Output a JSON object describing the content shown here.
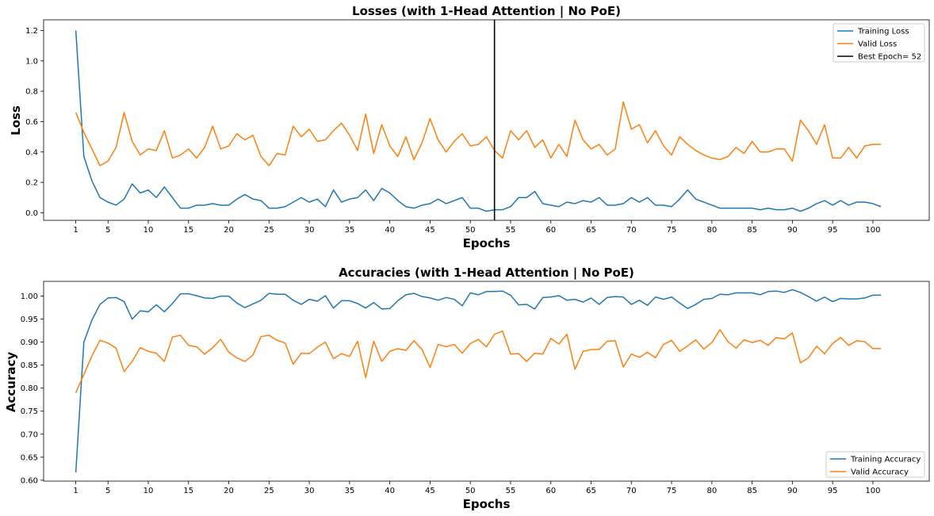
{
  "colors": {
    "training": "#1f77b4",
    "valid": "#ff7f0e",
    "best": "#000000",
    "frame": "#000000",
    "legend_border": "#cccccc"
  },
  "chart_data": [
    {
      "type": "line",
      "title": "Losses (with 1-Head Attention | No PoE)",
      "xlabel": "Epochs",
      "ylabel": "Loss",
      "xlim": [
        -4,
        106
      ],
      "ylim": [
        -0.05,
        1.27
      ],
      "xticks": [
        "1",
        "5",
        "10",
        "15",
        "20",
        "25",
        "30",
        "35",
        "40",
        "45",
        "50",
        "55",
        "60",
        "65",
        "70",
        "75",
        "80",
        "85",
        "90",
        "95",
        "100"
      ],
      "yticks": [
        "0.0",
        "0.2",
        "0.4",
        "0.6",
        "0.8",
        "1.0",
        "1.2"
      ],
      "legend_position": "top-right",
      "grid": false,
      "best_epoch": {
        "label": "Best Epoch= 52",
        "x": 52
      },
      "series": [
        {
          "name": "Training Loss",
          "color": "#1f77b4",
          "values": [
            1.2,
            0.37,
            0.21,
            0.1,
            0.07,
            0.05,
            0.09,
            0.19,
            0.13,
            0.15,
            0.1,
            0.17,
            0.1,
            0.03,
            0.03,
            0.05,
            0.05,
            0.06,
            0.05,
            0.05,
            0.09,
            0.12,
            0.09,
            0.08,
            0.03,
            0.03,
            0.04,
            0.07,
            0.1,
            0.07,
            0.09,
            0.04,
            0.15,
            0.07,
            0.09,
            0.1,
            0.15,
            0.08,
            0.16,
            0.13,
            0.08,
            0.04,
            0.03,
            0.05,
            0.06,
            0.09,
            0.06,
            0.08,
            0.1,
            0.03,
            0.03,
            0.01,
            0.02,
            0.02,
            0.04,
            0.1,
            0.1,
            0.14,
            0.06,
            0.05,
            0.04,
            0.07,
            0.06,
            0.08,
            0.07,
            0.1,
            0.05,
            0.05,
            0.06,
            0.1,
            0.07,
            0.1,
            0.05,
            0.05,
            0.04,
            0.09,
            0.15,
            0.09,
            0.07,
            0.05,
            0.03,
            0.03,
            0.03,
            0.03,
            0.03,
            0.02,
            0.03,
            0.02,
            0.02,
            0.03,
            0.01,
            0.03,
            0.06,
            0.08,
            0.05,
            0.08,
            0.05,
            0.07,
            0.07,
            0.06,
            0.04
          ]
        },
        {
          "name": "Valid Loss",
          "color": "#ff7f0e",
          "values": [
            0.66,
            0.53,
            0.42,
            0.31,
            0.34,
            0.43,
            0.66,
            0.47,
            0.38,
            0.42,
            0.41,
            0.54,
            0.36,
            0.38,
            0.42,
            0.36,
            0.43,
            0.57,
            0.42,
            0.44,
            0.52,
            0.48,
            0.51,
            0.37,
            0.31,
            0.39,
            0.38,
            0.57,
            0.5,
            0.55,
            0.47,
            0.48,
            0.54,
            0.59,
            0.51,
            0.41,
            0.65,
            0.39,
            0.58,
            0.44,
            0.37,
            0.5,
            0.35,
            0.46,
            0.62,
            0.48,
            0.4,
            0.47,
            0.52,
            0.44,
            0.45,
            0.5,
            0.41,
            0.36,
            0.54,
            0.48,
            0.54,
            0.43,
            0.48,
            0.36,
            0.45,
            0.37,
            0.61,
            0.48,
            0.42,
            0.45,
            0.38,
            0.42,
            0.73,
            0.55,
            0.58,
            0.46,
            0.54,
            0.44,
            0.38,
            0.5,
            0.45,
            0.41,
            0.38,
            0.36,
            0.35,
            0.37,
            0.43,
            0.39,
            0.47,
            0.4,
            0.4,
            0.42,
            0.42,
            0.34,
            0.61,
            0.54,
            0.45,
            0.58,
            0.36,
            0.36,
            0.43,
            0.36,
            0.44,
            0.45,
            0.45
          ]
        }
      ]
    },
    {
      "type": "line",
      "title": "Accuracies (with 1-Head Attention | No PoE)",
      "xlabel": "Epochs",
      "ylabel": "Accuracy",
      "xlim": [
        -4,
        106
      ],
      "ylim": [
        0.598,
        1.032
      ],
      "xticks": [
        "1",
        "5",
        "10",
        "15",
        "20",
        "25",
        "30",
        "35",
        "40",
        "45",
        "50",
        "55",
        "60",
        "65",
        "70",
        "75",
        "80",
        "85",
        "90",
        "95",
        "100"
      ],
      "yticks": [
        "0.60",
        "0.65",
        "0.70",
        "0.75",
        "0.80",
        "0.85",
        "0.90",
        "0.95",
        "1.00"
      ],
      "legend_position": "bottom-right",
      "grid": false,
      "series": [
        {
          "name": "Training Accuracy",
          "color": "#1f77b4",
          "values": [
            0.617,
            0.9,
            0.948,
            0.982,
            0.996,
            0.997,
            0.988,
            0.95,
            0.968,
            0.966,
            0.981,
            0.966,
            0.984,
            1.005,
            1.005,
            1.001,
            0.996,
            0.995,
            1.0,
            1.0,
            0.985,
            0.975,
            0.983,
            0.991,
            1.006,
            1.004,
            1.004,
            0.991,
            0.982,
            0.993,
            0.989,
            1.001,
            0.974,
            0.99,
            0.99,
            0.984,
            0.974,
            0.986,
            0.972,
            0.973,
            0.99,
            1.003,
            1.006,
            0.999,
            0.996,
            0.991,
            0.997,
            0.993,
            0.979,
            1.007,
            1.003,
            1.01,
            1.01,
            1.011,
            1.002,
            0.981,
            0.982,
            0.972,
            0.997,
            0.998,
            1.001,
            0.991,
            0.993,
            0.987,
            0.996,
            0.982,
            0.997,
            0.999,
            0.998,
            0.982,
            0.991,
            0.98,
            0.998,
            0.993,
            0.998,
            0.985,
            0.973,
            0.982,
            0.993,
            0.995,
            1.004,
            1.003,
            1.007,
            1.007,
            1.007,
            1.003,
            1.01,
            1.011,
            1.008,
            1.014,
            1.008,
            0.999,
            0.989,
            0.998,
            0.988,
            0.995,
            0.994,
            0.994,
            0.996,
            1.002,
            1.002
          ]
        },
        {
          "name": "Valid Accuracy",
          "color": "#ff7f0e",
          "values": [
            0.79,
            0.83,
            0.87,
            0.904,
            0.898,
            0.887,
            0.836,
            0.858,
            0.888,
            0.88,
            0.876,
            0.858,
            0.911,
            0.915,
            0.893,
            0.89,
            0.874,
            0.888,
            0.906,
            0.878,
            0.866,
            0.858,
            0.872,
            0.912,
            0.915,
            0.904,
            0.898,
            0.852,
            0.876,
            0.875,
            0.889,
            0.9,
            0.864,
            0.875,
            0.869,
            0.902,
            0.823,
            0.902,
            0.858,
            0.88,
            0.886,
            0.882,
            0.903,
            0.884,
            0.845,
            0.895,
            0.89,
            0.895,
            0.876,
            0.897,
            0.906,
            0.89,
            0.917,
            0.924,
            0.874,
            0.875,
            0.858,
            0.876,
            0.874,
            0.908,
            0.896,
            0.917,
            0.841,
            0.88,
            0.884,
            0.884,
            0.902,
            0.903,
            0.846,
            0.874,
            0.867,
            0.878,
            0.866,
            0.895,
            0.904,
            0.88,
            0.892,
            0.905,
            0.885,
            0.899,
            0.927,
            0.901,
            0.887,
            0.905,
            0.899,
            0.904,
            0.893,
            0.91,
            0.907,
            0.92,
            0.855,
            0.866,
            0.891,
            0.875,
            0.897,
            0.91,
            0.893,
            0.903,
            0.901,
            0.886,
            0.886
          ]
        }
      ]
    }
  ]
}
